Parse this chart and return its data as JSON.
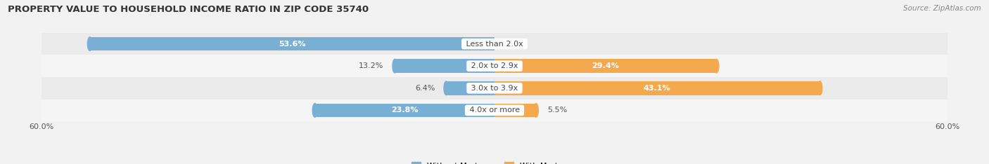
{
  "title": "PROPERTY VALUE TO HOUSEHOLD INCOME RATIO IN ZIP CODE 35740",
  "source": "Source: ZipAtlas.com",
  "categories": [
    "Less than 2.0x",
    "2.0x to 2.9x",
    "3.0x to 3.9x",
    "4.0x or more"
  ],
  "without_mortgage": [
    53.6,
    13.2,
    6.4,
    23.8
  ],
  "with_mortgage": [
    0.0,
    29.4,
    43.1,
    5.5
  ],
  "color_without": "#7aafd4",
  "color_with": "#f5a94e",
  "axis_limit": 60.0,
  "bar_height": 0.62,
  "background_color": "#f2f2f2",
  "row_bg_colors": [
    "#ebebeb",
    "#f5f5f5",
    "#ebebeb",
    "#f5f5f5"
  ],
  "label_fontsize": 8.0,
  "title_fontsize": 9.5,
  "source_fontsize": 7.5,
  "legend_fontsize": 8.0
}
